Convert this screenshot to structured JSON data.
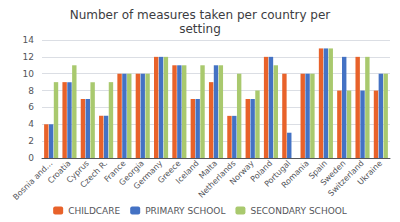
{
  "chart_data": {
    "type": "bar",
    "title": "Number of measures taken per country per\nsetting",
    "categories": [
      "Bosnia and...",
      "Croatia",
      "Cyprus",
      "Czech R.",
      "France",
      "Georgia",
      "Germany",
      "Greece",
      "Iceland",
      "Malta",
      "Netherlands",
      "Norway",
      "Poland",
      "Portugal",
      "Romania",
      "Spain",
      "Sweden",
      "Switzerland",
      "Ukraine"
    ],
    "series": [
      {
        "name": "CHILDCARE",
        "color": "#e8622a",
        "values": [
          4,
          9,
          7,
          5,
          10,
          10,
          12,
          11,
          7,
          9,
          5,
          7,
          12,
          10,
          10,
          13,
          8,
          12,
          8
        ]
      },
      {
        "name": "PRIMARY SCHOOL",
        "color": "#4472c4",
        "values": [
          4,
          9,
          7,
          5,
          10,
          10,
          12,
          11,
          7,
          11,
          5,
          7,
          12,
          3,
          10,
          13,
          12,
          8,
          10
        ]
      },
      {
        "name": "SECONDARY SCHOOL",
        "color": "#a9c96e",
        "values": [
          9,
          11,
          9,
          9,
          10,
          10,
          12,
          11,
          11,
          11,
          10,
          8,
          11,
          0,
          10,
          13,
          8,
          12,
          10
        ]
      }
    ],
    "ylim": [
      0,
      14
    ],
    "yticks": [
      0,
      2,
      4,
      6,
      8,
      10,
      12,
      14
    ],
    "grid": true,
    "legend": "bottom"
  }
}
